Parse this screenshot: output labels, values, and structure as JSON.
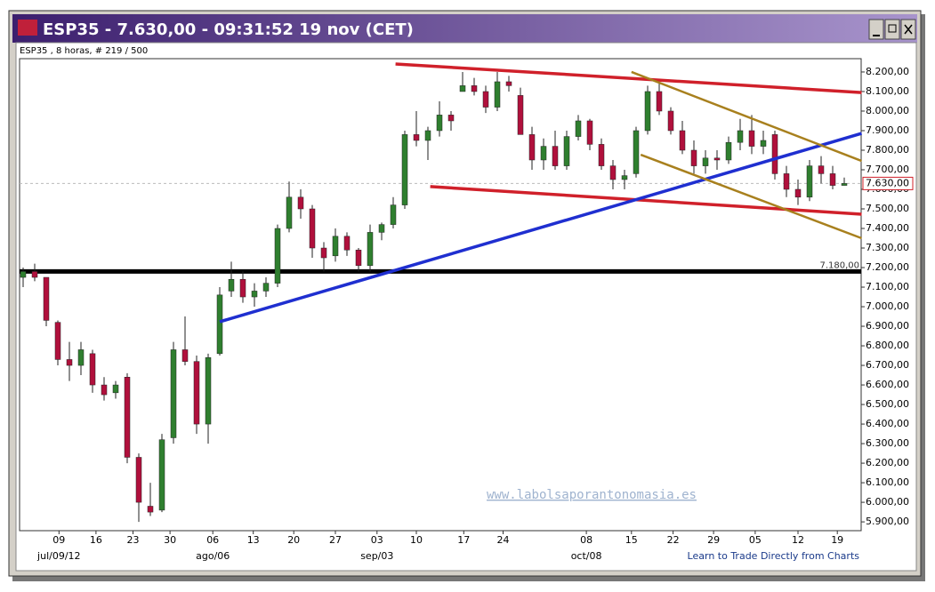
{
  "window_title": "ESP35 - 7.630,00 - 09:31:52  19 nov (CET)",
  "chart_data": {
    "type": "candlestick",
    "subtitle": "ESP35 , 8 horas, # 219 / 500",
    "open": [
      7150,
      7180,
      7150,
      6920,
      6730,
      6700,
      6760,
      6600,
      6560,
      6640,
      6230,
      5980,
      5960,
      6330,
      6780,
      6720,
      6400,
      6760,
      7080,
      7140,
      7050,
      7080,
      7120,
      7400,
      7560,
      7500,
      7300,
      7260,
      7360,
      7290,
      7210,
      7380,
      7420,
      7520,
      7880,
      7850,
      7900,
      7980,
      8100,
      8130,
      8100,
      8020,
      8150,
      8080,
      7880,
      7750,
      7820,
      7720,
      7870,
      7950,
      7830,
      7720,
      7650,
      7680,
      7900,
      8100,
      8000,
      7900,
      7800,
      7720,
      7760,
      7750,
      7840,
      7900,
      7820,
      7880,
      7680,
      7600,
      7560,
      7720,
      7680,
      7620
    ],
    "high": [
      7200,
      7220,
      7150,
      6930,
      6820,
      6820,
      6780,
      6640,
      6620,
      6660,
      6250,
      6100,
      6350,
      6820,
      6950,
      6750,
      6760,
      7100,
      7230,
      7180,
      7120,
      7150,
      7420,
      7640,
      7600,
      7520,
      7330,
      7400,
      7380,
      7300,
      7420,
      7430,
      7560,
      7900,
      8000,
      7920,
      8050,
      8000,
      8200,
      8170,
      8130,
      8200,
      8180,
      8120,
      7920,
      7860,
      7900,
      7900,
      7980,
      7960,
      7860,
      7750,
      7700,
      7920,
      8130,
      8150,
      8020,
      7950,
      7850,
      7800,
      7800,
      7870,
      7960,
      7980,
      7900,
      7900,
      7720,
      7650,
      7750,
      7770,
      7720,
      7660
    ],
    "low": [
      7100,
      7130,
      6900,
      6700,
      6620,
      6650,
      6560,
      6520,
      6530,
      6200,
      5900,
      5930,
      5950,
      6300,
      6700,
      6350,
      6300,
      6750,
      7050,
      7020,
      7000,
      7050,
      7100,
      7380,
      7450,
      7250,
      7180,
      7230,
      7260,
      7180,
      7180,
      7340,
      7400,
      7500,
      7820,
      7750,
      7870,
      7900,
      8100,
      8080,
      7990,
      8000,
      8100,
      7900,
      7700,
      7700,
      7700,
      7700,
      7850,
      7800,
      7700,
      7600,
      7600,
      7660,
      7880,
      7980,
      7880,
      7780,
      7680,
      7680,
      7700,
      7730,
      7800,
      7780,
      7780,
      7650,
      7560,
      7520,
      7540,
      7630,
      7600,
      7620
    ],
    "close": [
      7180,
      7150,
      6930,
      6730,
      6700,
      6780,
      6600,
      6550,
      6600,
      6230,
      6000,
      5950,
      6320,
      6780,
      6720,
      6400,
      6740,
      7060,
      7140,
      7050,
      7080,
      7120,
      7400,
      7560,
      7500,
      7300,
      7250,
      7360,
      7290,
      7210,
      7380,
      7420,
      7520,
      7880,
      7850,
      7900,
      7980,
      7950,
      8130,
      8100,
      8020,
      8150,
      8130,
      7880,
      7750,
      7820,
      7720,
      7870,
      7950,
      7830,
      7720,
      7650,
      7670,
      7900,
      8100,
      8000,
      7900,
      7800,
      7720,
      7760,
      7750,
      7840,
      7900,
      7820,
      7850,
      7680,
      7600,
      7560,
      7720,
      7680,
      7620,
      7630
    ],
    "up_color": "#2f7f2f",
    "down_color": "#b0103c",
    "ylim": [
      5855,
      8268
    ],
    "yticks": [
      {
        "value": 5900,
        "label": "5.900,00"
      },
      {
        "value": 6000,
        "label": "6.000,00"
      },
      {
        "value": 6100,
        "label": "6.100,00"
      },
      {
        "value": 6200,
        "label": "6.200,00"
      },
      {
        "value": 6300,
        "label": "6.300,00"
      },
      {
        "value": 6400,
        "label": "6.400,00"
      },
      {
        "value": 6500,
        "label": "6.500,00"
      },
      {
        "value": 6600,
        "label": "6.600,00"
      },
      {
        "value": 6700,
        "label": "6.700,00"
      },
      {
        "value": 6800,
        "label": "6.800,00"
      },
      {
        "value": 6900,
        "label": "6.900,00"
      },
      {
        "value": 7000,
        "label": "7.000,00"
      },
      {
        "value": 7100,
        "label": "7.100,00"
      },
      {
        "value": 7200,
        "label": "7.200,00"
      },
      {
        "value": 7300,
        "label": "7.300,00"
      },
      {
        "value": 7400,
        "label": "7.400,00"
      },
      {
        "value": 7500,
        "label": "7.500,00"
      },
      {
        "value": 7600,
        "label": "7.600,00"
      },
      {
        "value": 7700,
        "label": "7.700,00"
      },
      {
        "value": 7800,
        "label": "7.800,00"
      },
      {
        "value": 7900,
        "label": "7.900,00"
      },
      {
        "value": 8000,
        "label": "8.000,00"
      },
      {
        "value": 8100,
        "label": "8.100,00"
      },
      {
        "value": 8200,
        "label": "8.200,00"
      }
    ],
    "xticks": [
      {
        "value": 3.1,
        "label": "09"
      },
      {
        "value": 6.3,
        "label": "16"
      },
      {
        "value": 9.5,
        "label": "23"
      },
      {
        "value": 12.7,
        "label": "30"
      },
      {
        "value": 16.4,
        "label": "06"
      },
      {
        "value": 19.9,
        "label": "13"
      },
      {
        "value": 23.4,
        "label": "20"
      },
      {
        "value": 27,
        "label": "27"
      },
      {
        "value": 30.6,
        "label": "03"
      },
      {
        "value": 34,
        "label": "10"
      },
      {
        "value": 38.1,
        "label": "17"
      },
      {
        "value": 41.5,
        "label": "24"
      },
      {
        "value": 48.7,
        "label": "08"
      },
      {
        "value": 52.6,
        "label": "15"
      },
      {
        "value": 56.2,
        "label": "22"
      },
      {
        "value": 59.7,
        "label": "29"
      },
      {
        "value": 63.3,
        "label": "05"
      },
      {
        "value": 67,
        "label": "12"
      },
      {
        "value": 70.4,
        "label": "19"
      }
    ],
    "month_ticks": [
      {
        "value": 3.1,
        "label": "jul/09/12"
      },
      {
        "value": 16.4,
        "label": "ago/06"
      },
      {
        "value": 30.6,
        "label": "sep/03"
      },
      {
        "value": 48.7,
        "label": "oct/08"
      }
    ],
    "trendlines": [
      {
        "color": "#d0202a",
        "x": [
          32.2,
          72.5
        ],
        "y": [
          8241,
          8095
        ]
      },
      {
        "color": "#d0202a",
        "x": [
          35.2,
          72.5
        ],
        "y": [
          7614,
          7473
        ]
      },
      {
        "color": "#1f2fd0",
        "x": [
          17,
          72.5
        ],
        "y": [
          6923,
          7886
        ]
      },
      {
        "color": "#a8801e",
        "x": [
          52.6,
          72.5
        ],
        "y": [
          8200,
          7745
        ]
      },
      {
        "color": "#a8801e",
        "x": [
          53.4,
          72.5
        ],
        "y": [
          7777,
          7350
        ]
      }
    ],
    "hline": {
      "value": 7180,
      "label": "7.180,00"
    },
    "last_price": {
      "value": 7630,
      "label": "7.630,00"
    },
    "watermark": "www.labolsaporantonomasia.es",
    "footer_link": "Learn to Trade Directly from Charts"
  }
}
